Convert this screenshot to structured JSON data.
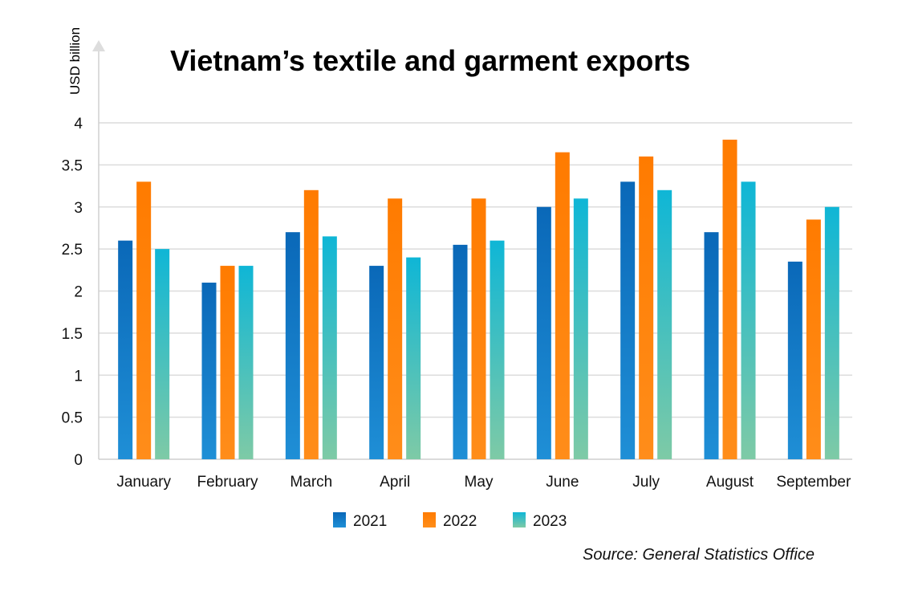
{
  "chart_data": {
    "type": "bar",
    "title": "Vietnam’s textile and garment exports",
    "ylabel": "USD billion",
    "xlabel": "",
    "ylim": [
      0,
      4
    ],
    "yticks": [
      "0",
      "0.5",
      "1",
      "1.5",
      "2",
      "2.5",
      "3",
      "3.5",
      "4"
    ],
    "grid": true,
    "legend_position": "bottom-center",
    "categories": [
      "January",
      "February",
      "March",
      "April",
      "May",
      "June",
      "July",
      "August",
      "September"
    ],
    "series": [
      {
        "name": "2021",
        "color": "#0b6fbd",
        "values": [
          2.6,
          2.1,
          2.7,
          2.3,
          2.55,
          3.0,
          3.3,
          2.7,
          2.35
        ]
      },
      {
        "name": "2022",
        "color": "#ff8000",
        "values": [
          3.3,
          2.3,
          3.2,
          3.1,
          3.1,
          3.65,
          3.6,
          3.8,
          2.85
        ]
      },
      {
        "name": "2023",
        "color": "#1fb3d1",
        "values": [
          2.5,
          2.3,
          2.65,
          2.4,
          2.6,
          3.1,
          3.2,
          3.3,
          3.0
        ]
      }
    ],
    "source": "Source: General Statistics Office"
  }
}
